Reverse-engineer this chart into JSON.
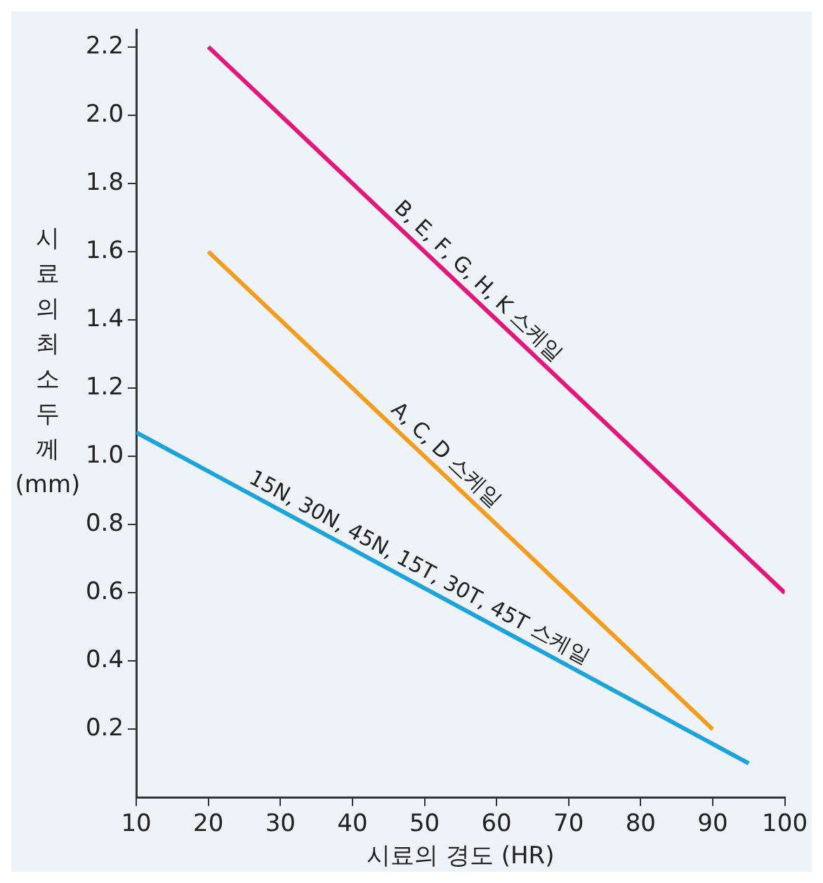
{
  "chart_data": {
    "type": "line",
    "xlabel": "시료의 경도 (HR)",
    "ylabel": "시료의최소두께 (mm)",
    "xlim": [
      10,
      100
    ],
    "ylim": [
      0,
      2.25
    ],
    "xticks": [
      10,
      20,
      30,
      40,
      50,
      60,
      70,
      80,
      90,
      100
    ],
    "yticks": [
      0.2,
      0.4,
      0.6,
      0.8,
      {
        "value": 1,
        "label": "1.0"
      },
      1.2,
      1.4,
      1.6,
      1.8,
      {
        "value": 2,
        "label": "2.0"
      },
      2.2
    ],
    "grid": false,
    "legend": false,
    "marker": "none",
    "line_style": "solid",
    "series": [
      {
        "name": "B, E, F, G, H, K 스케일",
        "color": "#e5157a",
        "x": [
          20,
          100
        ],
        "values": [
          2.2,
          0.6
        ]
      },
      {
        "name": "A, C, D 스케일",
        "color": "#f39c1e",
        "x": [
          20,
          90
        ],
        "values": [
          1.6,
          0.2
        ]
      },
      {
        "name": "15N, 30N, 45N, 15T, 30T, 45T 스케일",
        "color": "#1ca3dc",
        "x": [
          10,
          95
        ],
        "values": [
          1.07,
          0.1
        ]
      }
    ]
  }
}
